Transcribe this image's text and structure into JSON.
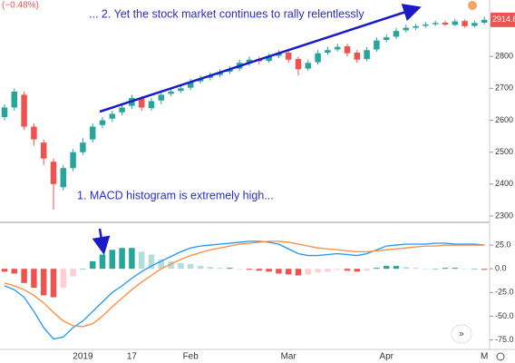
{
  "chart_data": [
    {
      "type": "candlestick",
      "change_label": "(−0.48%)",
      "annotation": "... 2. Yet the stock market continues to rally relentlessly",
      "open": [
        2610,
        2640,
        2680,
        2580,
        2530,
        2470,
        2390,
        2450,
        2500,
        2540,
        2585,
        2605,
        2625,
        2645,
        2668,
        2638,
        2662,
        2683,
        2692,
        2702,
        2722,
        2733,
        2742,
        2752,
        2762,
        2780,
        2792,
        2786,
        2802,
        2812,
        2792,
        2762,
        2782,
        2812,
        2822,
        2832,
        2812,
        2792,
        2822,
        2852,
        2862,
        2882,
        2890,
        2896,
        2901,
        2906,
        2899,
        2911,
        2896,
        2906
      ],
      "high": [
        2650,
        2700,
        2690,
        2590,
        2540,
        2480,
        2460,
        2510,
        2545,
        2590,
        2610,
        2630,
        2650,
        2680,
        2675,
        2670,
        2690,
        2700,
        2710,
        2730,
        2740,
        2750,
        2760,
        2770,
        2790,
        2800,
        2800,
        2810,
        2820,
        2820,
        2800,
        2790,
        2820,
        2830,
        2840,
        2840,
        2820,
        2830,
        2860,
        2870,
        2890,
        2900,
        2902,
        2908,
        2912,
        2912,
        2918,
        2916,
        2912,
        2925
      ],
      "low": [
        2600,
        2630,
        2570,
        2520,
        2460,
        2320,
        2380,
        2440,
        2490,
        2530,
        2575,
        2595,
        2615,
        2635,
        2630,
        2630,
        2650,
        2675,
        2685,
        2695,
        2715,
        2725,
        2735,
        2745,
        2755,
        2770,
        2775,
        2780,
        2795,
        2780,
        2740,
        2755,
        2775,
        2805,
        2815,
        2800,
        2780,
        2785,
        2815,
        2845,
        2855,
        2875,
        2883,
        2890,
        2895,
        2895,
        2895,
        2890,
        2890,
        2900
      ],
      "close": [
        2640,
        2690,
        2580,
        2540,
        2480,
        2400,
        2450,
        2500,
        2530,
        2580,
        2600,
        2620,
        2640,
        2670,
        2640,
        2660,
        2680,
        2690,
        2700,
        2720,
        2730,
        2740,
        2750,
        2760,
        2780,
        2790,
        2785,
        2800,
        2810,
        2790,
        2760,
        2780,
        2810,
        2820,
        2830,
        2810,
        2790,
        2820,
        2850,
        2860,
        2880,
        2890,
        2895,
        2900,
        2905,
        2900,
        2910,
        2895,
        2905,
        2914.8
      ],
      "up_color": "#26a69a",
      "down_color": "#ef5350",
      "ylim": [
        2280,
        2977
      ],
      "yticks": [
        2300,
        2400,
        2500,
        2600,
        2700,
        2800,
        2900
      ]
    },
    {
      "type": "macd",
      "annotation": "1. MACD histogram is extremely high...",
      "categories": [
        null,
        null,
        null,
        null,
        null,
        null,
        null,
        null,
        "2019",
        null,
        null,
        null,
        null,
        "17",
        null,
        null,
        null,
        null,
        null,
        "Feb",
        null,
        null,
        null,
        null,
        null,
        null,
        null,
        null,
        null,
        "Mar",
        null,
        null,
        null,
        null,
        null,
        null,
        null,
        null,
        null,
        "Apr",
        null,
        null,
        null,
        null,
        null,
        null,
        null,
        null,
        null,
        "M"
      ],
      "histogram": [
        -3,
        -5,
        -15,
        -20,
        -28,
        -30,
        -20,
        -8,
        0,
        8,
        15,
        20,
        22,
        22,
        18,
        15,
        10,
        8,
        6,
        5,
        3,
        2,
        1,
        1,
        0,
        -1,
        -2,
        -3,
        -5,
        -6,
        -7,
        -6,
        -4,
        -3,
        -1,
        -2,
        -3,
        -2,
        1,
        3,
        3,
        2,
        1,
        0,
        0,
        1,
        1,
        0,
        0,
        -1
      ],
      "hist_colors": {
        "up": "#26a69a",
        "up_fading": "#b2dfdb",
        "down": "#ef5350",
        "down_fading": "#ffcdd2"
      },
      "series": [
        {
          "color": "#2196f3",
          "values": [
            -18,
            -22,
            -30,
            -45,
            -62,
            -74,
            -72,
            -62,
            -55,
            -45,
            -35,
            -25,
            -18,
            -10,
            -3,
            3,
            8,
            13,
            18,
            22,
            24,
            25,
            26,
            27,
            28,
            29,
            29,
            28,
            26,
            21,
            16,
            14,
            14,
            15,
            16,
            15,
            14,
            16,
            20,
            24,
            25,
            26,
            26,
            26,
            27,
            27,
            26,
            26,
            26,
            25
          ]
        },
        {
          "color": "#ff8a3d",
          "values": [
            -15,
            -18,
            -22,
            -28,
            -36,
            -46,
            -55,
            -60,
            -61,
            -58,
            -50,
            -40,
            -31,
            -22,
            -14,
            -7,
            0,
            5,
            10,
            14,
            17,
            20,
            22,
            24,
            26,
            27,
            28,
            29,
            29,
            28,
            26,
            24,
            22,
            21,
            20,
            19,
            18,
            18,
            19,
            20,
            21,
            22,
            23,
            24,
            24,
            25,
            25,
            25,
            25,
            25
          ]
        }
      ],
      "ylim": [
        -85,
        49
      ],
      "yticks": [
        {
          "value": -75,
          "label": "-75.0"
        },
        {
          "value": -50,
          "label": "-50.0"
        },
        {
          "value": -25,
          "label": "-25.0"
        },
        {
          "value": 0,
          "label": "0.0"
        },
        {
          "value": 25,
          "label": "25.0"
        }
      ]
    }
  ]
}
